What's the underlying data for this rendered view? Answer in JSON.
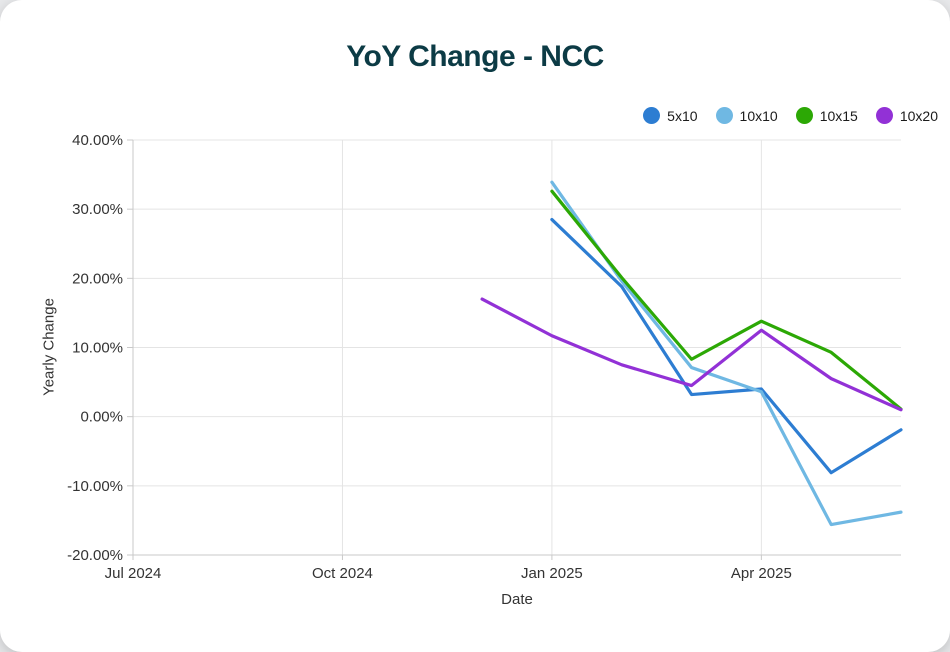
{
  "page": {
    "card_bg": "#ffffff",
    "page_bg": "#e8e9eb"
  },
  "header": {
    "title": "YoY Change - NCC",
    "title_color": "#0c3b45"
  },
  "chart_data": {
    "type": "line",
    "title": "YoY Change - NCC",
    "xlabel": "Date",
    "ylabel": "Yearly Change",
    "ylim": [
      -20,
      40
    ],
    "y_ticks": [
      40,
      30,
      20,
      10,
      0,
      -10,
      -20
    ],
    "y_tick_suffix": "%",
    "y_tick_decimals": 2,
    "grid": true,
    "legend_position": "top-right",
    "x_months": [
      "Jul 2024",
      "Aug 2024",
      "Sep 2024",
      "Oct 2024",
      "Nov 2024",
      "Dec 2024",
      "Jan 2025",
      "Feb 2025",
      "Mar 2025",
      "Apr 2025",
      "May 2025",
      "Jun 2025"
    ],
    "x_range": [
      0,
      11
    ],
    "x_ticks": [
      {
        "month_index": 0,
        "label": "Jul 2024"
      },
      {
        "month_index": 3,
        "label": "Oct 2024"
      },
      {
        "month_index": 6,
        "label": "Jan 2025"
      },
      {
        "month_index": 9,
        "label": "Apr 2025"
      }
    ],
    "series": [
      {
        "name": "5x10",
        "color": "#2d7dd2",
        "x_month_indices": [
          6,
          7,
          8,
          9,
          10,
          11
        ],
        "values": [
          28.5,
          18.8,
          3.2,
          4.0,
          -8.1,
          -1.9
        ]
      },
      {
        "name": "10x10",
        "color": "#6fb8e3",
        "x_month_indices": [
          6,
          7,
          8,
          9,
          10,
          11
        ],
        "values": [
          33.9,
          19.6,
          7.1,
          3.6,
          -15.6,
          -13.8
        ]
      },
      {
        "name": "10x15",
        "color": "#2ca805",
        "x_month_indices": [
          6,
          7,
          8,
          9,
          10,
          11
        ],
        "values": [
          32.6,
          20.1,
          8.3,
          13.8,
          9.3,
          1.1
        ]
      },
      {
        "name": "10x20",
        "color": "#9231d6",
        "x_month_indices": [
          5,
          6,
          7,
          8,
          9,
          10,
          11
        ],
        "values": [
          17.0,
          11.7,
          7.5,
          4.5,
          12.5,
          5.5,
          1.0
        ]
      }
    ]
  }
}
